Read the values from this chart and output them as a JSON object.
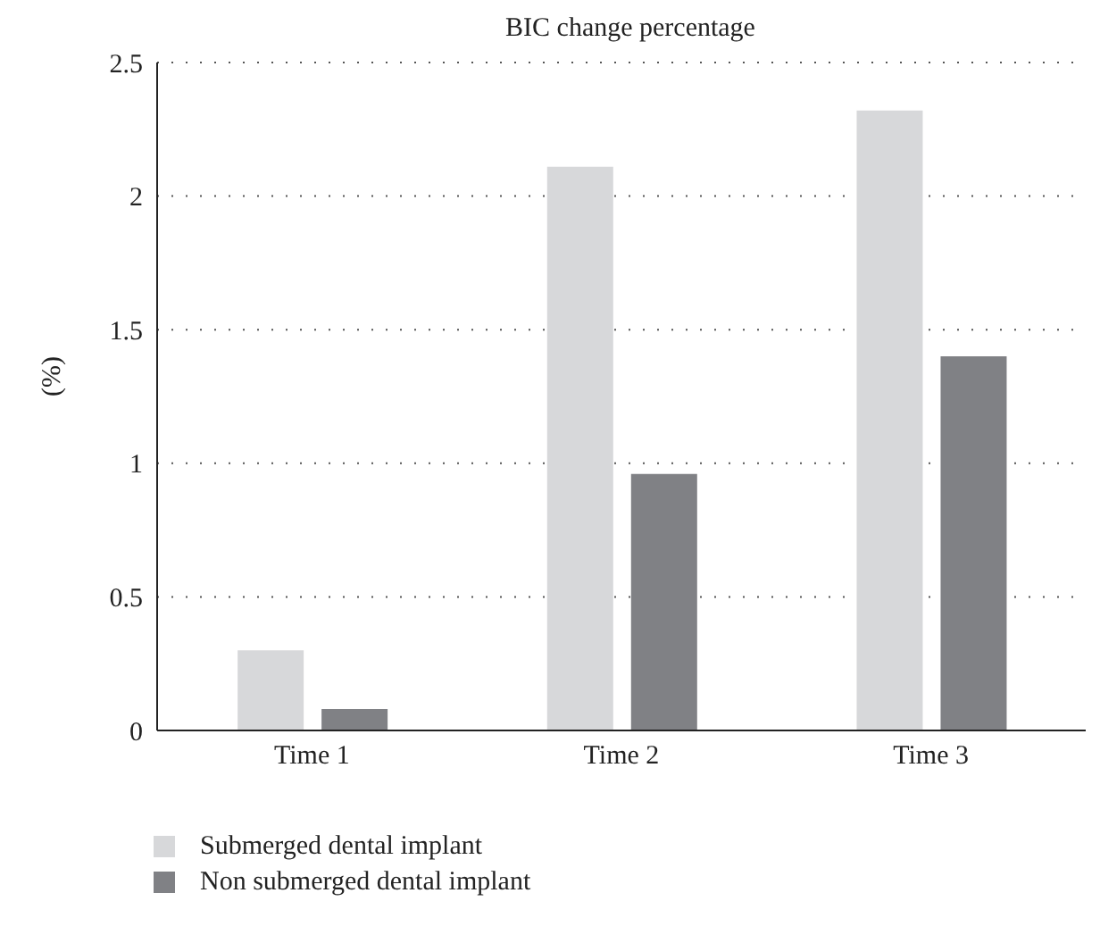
{
  "chart_data": {
    "type": "bar",
    "title": "BIC change percentage",
    "ylabel": "(%)",
    "categories": [
      "Time 1",
      "Time 2",
      "Time 3"
    ],
    "series": [
      {
        "name": "Submerged dental implant",
        "color": "#d7d8da",
        "values": [
          0.3,
          2.11,
          2.32
        ]
      },
      {
        "name": "Non submerged dental implant",
        "color": "#808185",
        "values": [
          0.08,
          0.96,
          1.4
        ]
      }
    ],
    "ylim": [
      0,
      2.5
    ],
    "yticks": [
      0,
      0.5,
      1,
      1.5,
      2,
      2.5
    ],
    "grid": "y",
    "legend": "bottom left"
  }
}
